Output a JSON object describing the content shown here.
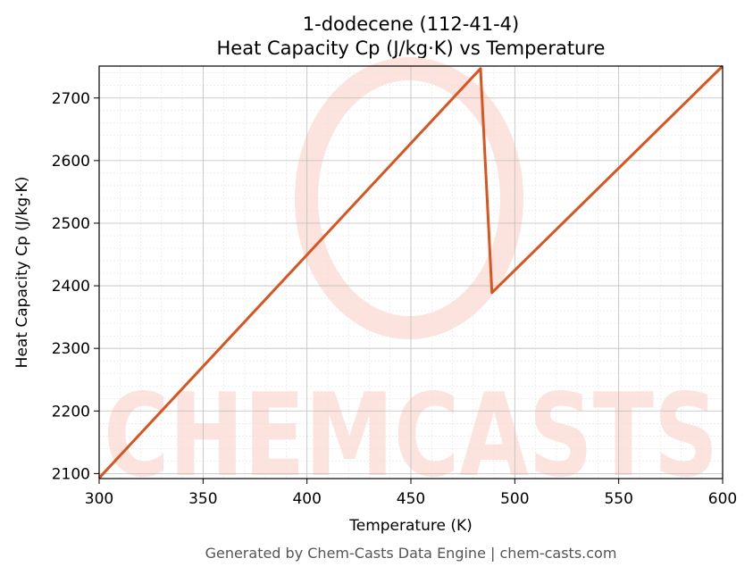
{
  "chart_data": {
    "type": "line",
    "title": "1-dodecene (112-41-4)",
    "subtitle": "Heat Capacity Cp (J/kg·K) vs Temperature",
    "x_label": "Temperature (K)",
    "y_label": "Heat Capacity Cp (J/kg·K)",
    "x": [
      300,
      483.5,
      489,
      600
    ],
    "series": [
      {
        "name": "Heat Capacity Cp",
        "color": "#d9541e",
        "values": [
          2093,
          2747,
          2389,
          2751
        ]
      }
    ],
    "xlim": [
      300,
      600
    ],
    "xticks": [
      300,
      350,
      400,
      450,
      500,
      550,
      600
    ],
    "ylim": [
      2092,
      2751
    ],
    "yticks": [
      2100,
      2200,
      2300,
      2400,
      2500,
      2600,
      2700
    ],
    "grid": true,
    "minor_grid": true,
    "watermark": "CHEMCASTS",
    "footer": "Generated by Chem-Casts Data Engine | chem-casts.com"
  }
}
